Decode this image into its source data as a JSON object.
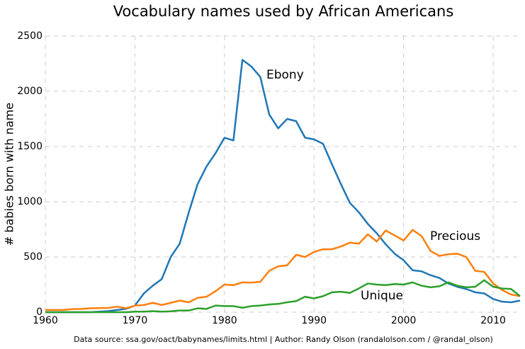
{
  "chart_data": {
    "type": "line",
    "title": "Vocabulary names used by African Americans",
    "y_label": "# babies born with name",
    "source": "Data source: ssa.gov/oact/babynames/limits.html | Author: Randy Olson (randalolson.com / @randal_olson)",
    "x": [
      1960,
      1961,
      1962,
      1963,
      1964,
      1965,
      1966,
      1967,
      1968,
      1969,
      1970,
      1971,
      1972,
      1973,
      1974,
      1975,
      1976,
      1977,
      1978,
      1979,
      1980,
      1981,
      1982,
      1983,
      1984,
      1985,
      1986,
      1987,
      1988,
      1989,
      1990,
      1991,
      1992,
      1993,
      1994,
      1995,
      1996,
      1997,
      1998,
      1999,
      2000,
      2001,
      2002,
      2003,
      2004,
      2005,
      2006,
      2007,
      2008,
      2009,
      2010,
      2011,
      2012,
      2013
    ],
    "series": [
      {
        "name": "Ebony",
        "color": "#1f77b4",
        "values": [
          0,
          0,
          0,
          0,
          0,
          0,
          5,
          10,
          20,
          30,
          60,
          170,
          240,
          300,
          500,
          620,
          900,
          1160,
          1320,
          1440,
          1580,
          1555,
          2285,
          2225,
          2130,
          1790,
          1665,
          1750,
          1730,
          1580,
          1565,
          1525,
          1340,
          1160,
          990,
          905,
          800,
          715,
          615,
          530,
          470,
          380,
          370,
          335,
          310,
          260,
          230,
          210,
          180,
          170,
          120,
          95,
          90,
          105
        ]
      },
      {
        "name": "Precious",
        "color": "#ff7f0e",
        "values": [
          20,
          20,
          20,
          28,
          30,
          35,
          38,
          38,
          50,
          35,
          60,
          65,
          85,
          65,
          85,
          105,
          90,
          130,
          140,
          190,
          250,
          245,
          270,
          268,
          275,
          375,
          415,
          425,
          520,
          500,
          545,
          570,
          570,
          595,
          630,
          620,
          705,
          640,
          740,
          695,
          650,
          745,
          690,
          555,
          510,
          525,
          530,
          500,
          375,
          365,
          260,
          200,
          160,
          145
        ]
      },
      {
        "name": "Unique",
        "color": "#2ca02c",
        "values": [
          0,
          0,
          0,
          0,
          0,
          0,
          0,
          0,
          0,
          0,
          5,
          5,
          10,
          5,
          8,
          15,
          15,
          35,
          30,
          60,
          55,
          55,
          40,
          55,
          60,
          70,
          75,
          90,
          100,
          140,
          125,
          145,
          180,
          185,
          175,
          215,
          260,
          250,
          245,
          255,
          250,
          270,
          240,
          225,
          235,
          270,
          240,
          225,
          230,
          290,
          230,
          215,
          210,
          145
        ]
      }
    ],
    "xlim": [
      1960,
      2013
    ],
    "ylim": [
      0,
      2500
    ],
    "xticks": [
      1960,
      1970,
      1980,
      1990,
      2000,
      2010
    ],
    "yticks": [
      0,
      500,
      1000,
      1500,
      2000,
      2500
    ],
    "grid": true
  }
}
